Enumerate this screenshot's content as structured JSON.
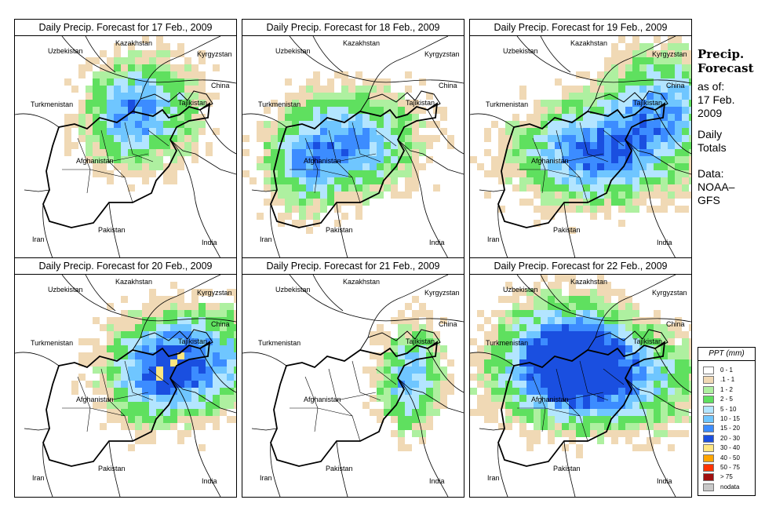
{
  "panels": [
    {
      "title": "Daily Precip. Forecast for  17 Feb., 2009"
    },
    {
      "title": "Daily Precip. Forecast for  18 Feb., 2009"
    },
    {
      "title": "Daily Precip. Forecast for  19 Feb., 2009"
    },
    {
      "title": "Daily Precip. Forecast for  20 Feb., 2009"
    },
    {
      "title": "Daily Precip. Forecast for  21 Feb., 2009"
    },
    {
      "title": "Daily Precip. Forecast for  22 Feb., 2009"
    }
  ],
  "countries": {
    "uzbekistan": "Uzbekistan",
    "kazakhstan": "Kazakhstan",
    "kyrgyzstan": "Kyrgyzstan",
    "china": "China",
    "turkmenistan": "Turkmenistan",
    "tajikistan": "Tajikistan",
    "afghanistan": "Afghanistan",
    "iran": "Iran",
    "pakistan": "Pakistan",
    "india": "India"
  },
  "side": {
    "title_line1": "Precip.",
    "title_line2": "Forecast",
    "asof_line1": "as of:",
    "asof_line2": "17 Feb.",
    "asof_line3": "2009",
    "daily_line1": "Daily",
    "daily_line2": "Totals",
    "data_line1": "Data:",
    "data_line2": "NOAA–",
    "data_line3": "GFS"
  },
  "legend": {
    "title": "PPT (mm)",
    "items": [
      {
        "label": "0 - 1",
        "color": "#ffffff"
      },
      {
        "label": ".1 - 1",
        "color": "#f0d9b5"
      },
      {
        "label": "1 - 2",
        "color": "#aef0a0"
      },
      {
        "label": "2 - 5",
        "color": "#5fe05f"
      },
      {
        "label": "5 - 10",
        "color": "#b3e5ff"
      },
      {
        "label": "10 - 15",
        "color": "#6fc6ff"
      },
      {
        "label": "15 - 20",
        "color": "#3c8cff"
      },
      {
        "label": "20 - 30",
        "color": "#1a4fe0"
      },
      {
        "label": "30 - 40",
        "color": "#ffe680"
      },
      {
        "label": "40 - 50",
        "color": "#ffa500"
      },
      {
        "label": "50 - 75",
        "color": "#ff3300"
      },
      {
        "label": "> 75",
        "color": "#a01010"
      },
      {
        "label": "nodata",
        "color": "#c8c8c8"
      }
    ]
  }
}
